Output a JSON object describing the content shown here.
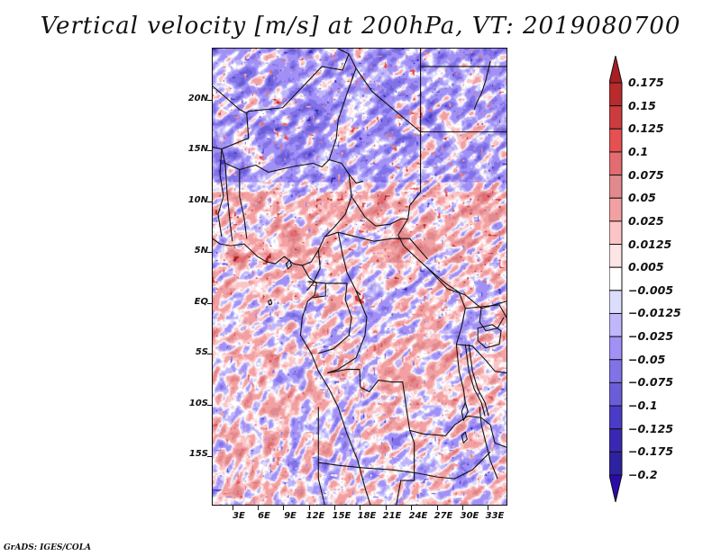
{
  "chart_data": {
    "type": "heatmap",
    "title": "Vertical velocity [m/s] at 200hPa, VT: 2019080700",
    "variable": "Vertical velocity",
    "units": "m/s",
    "level": "200hPa",
    "valid_time": "2019080700",
    "xlabel": "",
    "ylabel": "",
    "x_range_deg": [
      0.6,
      35.3
    ],
    "y_range_deg": [
      -19.9,
      25.1
    ],
    "x_ticks": [
      {
        "value": 3,
        "label": "3E"
      },
      {
        "value": 6,
        "label": "6E"
      },
      {
        "value": 9,
        "label": "9E"
      },
      {
        "value": 12,
        "label": "12E"
      },
      {
        "value": 15,
        "label": "15E"
      },
      {
        "value": 18,
        "label": "18E"
      },
      {
        "value": 21,
        "label": "21E"
      },
      {
        "value": 24,
        "label": "24E"
      },
      {
        "value": 27,
        "label": "27E"
      },
      {
        "value": 30,
        "label": "30E"
      },
      {
        "value": 33,
        "label": "33E"
      }
    ],
    "y_ticks": [
      {
        "value": 20,
        "label": "20N"
      },
      {
        "value": 15,
        "label": "15N"
      },
      {
        "value": 10,
        "label": "10N"
      },
      {
        "value": 5,
        "label": "5N"
      },
      {
        "value": 0,
        "label": "EQ"
      },
      {
        "value": -5,
        "label": "5S"
      },
      {
        "value": -10,
        "label": "10S"
      },
      {
        "value": -15,
        "label": "15S"
      }
    ],
    "colorbar": {
      "orientation": "vertical",
      "placement": "right",
      "extend": "both",
      "levels": [
        0.175,
        0.15,
        0.125,
        0.1,
        0.075,
        0.05,
        0.025,
        0.0125,
        0.005,
        -0.005,
        -0.0125,
        -0.025,
        -0.05,
        -0.075,
        -0.1,
        -0.125,
        -0.175,
        -0.2
      ],
      "labels": [
        "0.175",
        "0.15",
        "0.125",
        "0.1",
        "0.075",
        "0.05",
        "0.025",
        "0.0125",
        "0.005",
        "−0.005",
        "−0.0125",
        "−0.025",
        "−0.05",
        "−0.075",
        "−0.1",
        "−0.125",
        "−0.175",
        "−0.2"
      ],
      "colors_top_to_bottom": [
        "#a81e22",
        "#b82a2c",
        "#cc3c3e",
        "#e55052",
        "#e36c70",
        "#e18a8e",
        "#f3a0a2",
        "#fbc5c6",
        "#fde4e5",
        "#ffffff",
        "#dcdcfc",
        "#c0b6fa",
        "#a191f6",
        "#8272e8",
        "#6a5ed8",
        "#4a3bc8",
        "#3a28b4",
        "#2d22a0",
        "#2a0aa8"
      ]
    },
    "pattern_notes": "Mixed fine-scale positive (red) and negative (blue) anomalies; predominantly blue over Sahara (north), reds along 5-10N band and over Congo basin; light pinks over the Atlantic Gulf of Guinea; banded blue/red streaks SW toward 15-20S."
  },
  "footer": {
    "credit": "GrADS: IGES/COLA"
  }
}
